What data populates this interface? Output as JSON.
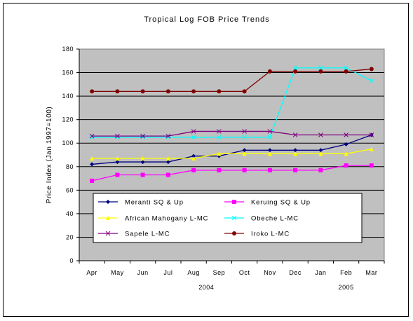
{
  "chart_data": {
    "type": "line",
    "title": "Tropical Log FOB Price Trends",
    "xlabel": "",
    "ylabel": "Price Index (Jan 1997=100)",
    "ylim": [
      0,
      180
    ],
    "yticks": [
      0,
      20,
      40,
      60,
      80,
      100,
      120,
      140,
      160,
      180
    ],
    "categories": [
      "Apr",
      "May",
      "Jun",
      "Jul",
      "Aug",
      "Sep",
      "Oct",
      "Nov",
      "Dec",
      "Jan",
      "Feb",
      "Mar"
    ],
    "year_labels": [
      {
        "label": "2004",
        "category": "Aug-Sep"
      },
      {
        "label": "2005",
        "category": "Feb"
      }
    ],
    "grid": true,
    "plot_background": "#c0c0c0",
    "legend_placement": "lower-center inside plot",
    "series": [
      {
        "name": "Meranti SQ & Up",
        "color": "#000080",
        "marker": "diamond",
        "values": [
          82,
          84,
          84,
          84,
          89,
          89,
          94,
          94,
          94,
          94,
          99,
          107
        ]
      },
      {
        "name": "Keruing SQ & Up",
        "color": "#ff00ff",
        "marker": "square",
        "values": [
          68,
          73,
          73,
          73,
          77,
          77,
          77,
          77,
          77,
          77,
          81,
          81
        ]
      },
      {
        "name": "African Mahogany L-MC",
        "color": "#ffff00",
        "marker": "triangle",
        "values": [
          87,
          87,
          87,
          87,
          87,
          91,
          91,
          91,
          91,
          91,
          91,
          95
        ]
      },
      {
        "name": "Obeche L-MC",
        "color": "#00ffff",
        "marker": "x",
        "values": [
          105,
          105,
          105,
          105,
          105,
          105,
          105,
          105,
          164,
          164,
          164,
          153
        ]
      },
      {
        "name": "Sapele L-MC",
        "color": "#800080",
        "marker": "x",
        "values": [
          106,
          106,
          106,
          106,
          110,
          110,
          110,
          110,
          107,
          107,
          107,
          107
        ]
      },
      {
        "name": "Iroko L-MC",
        "color": "#800000",
        "marker": "circle",
        "values": [
          144,
          144,
          144,
          144,
          144,
          144,
          144,
          161,
          161,
          161,
          161,
          163
        ]
      }
    ]
  }
}
